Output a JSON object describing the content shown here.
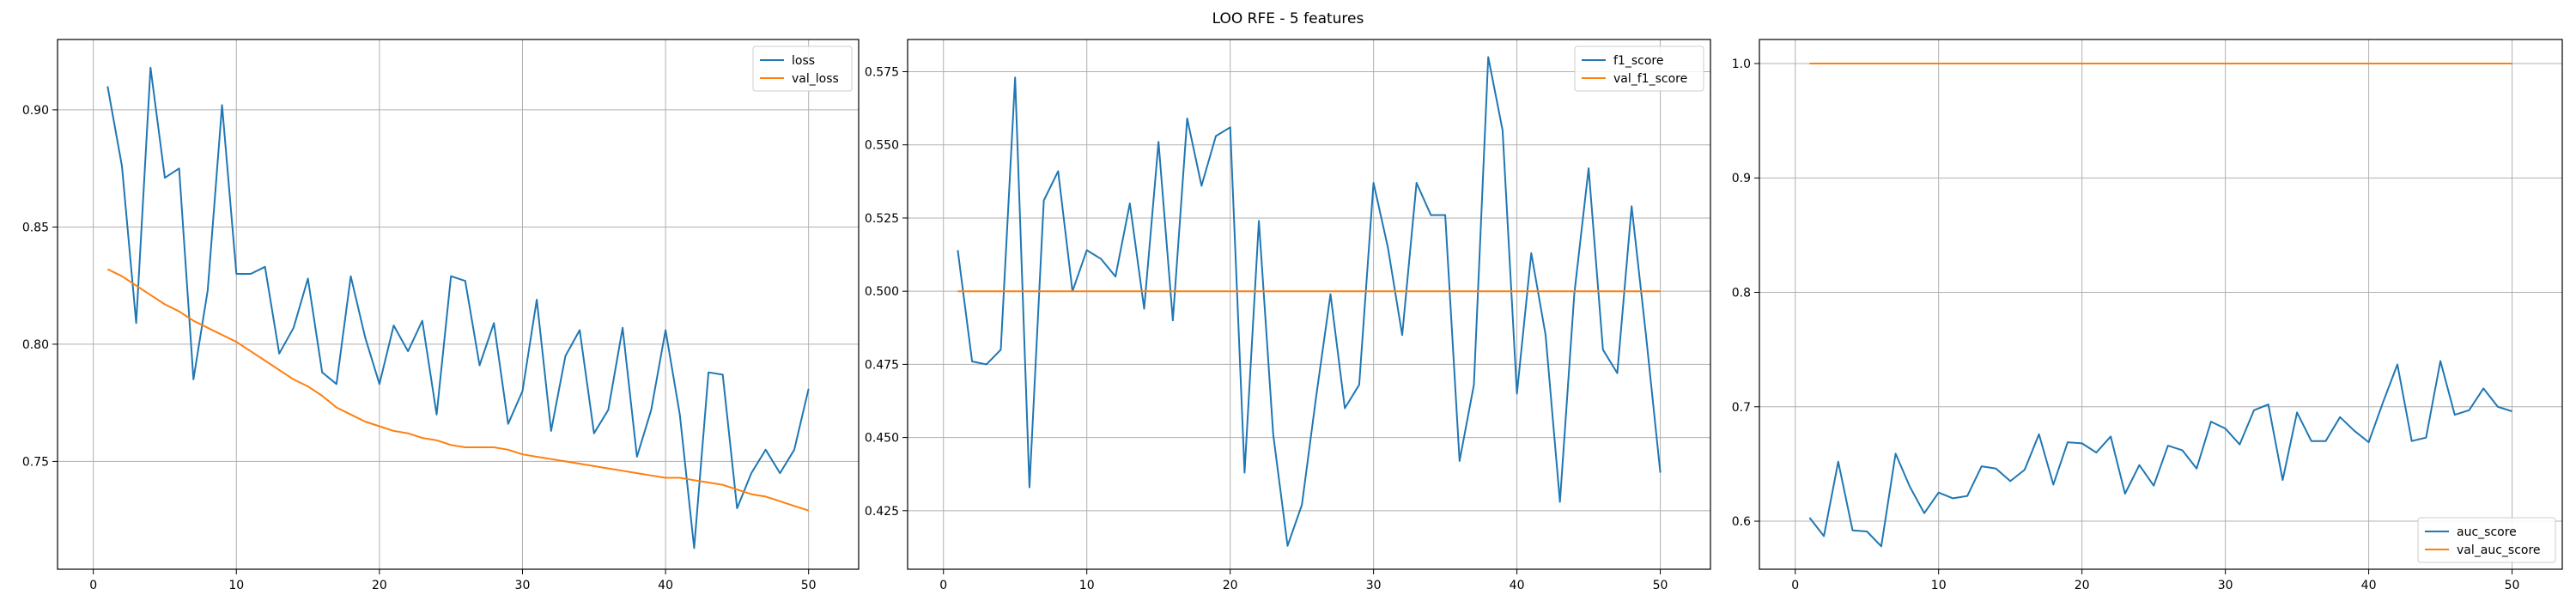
{
  "figure_title": "LOO RFE - 5 features",
  "colors": {
    "blue": "#1f77b4",
    "orange": "#ff7f0e"
  },
  "chart_data": [
    {
      "type": "line",
      "legend_position": "top-right",
      "grid": true,
      "xlim": [
        -2.5,
        53.5
      ],
      "ylim": [
        0.704,
        0.93
      ],
      "xticks": [
        0,
        10,
        20,
        30,
        40,
        50
      ],
      "yticks": [
        0.75,
        0.8,
        0.85,
        0.9
      ],
      "ytick_decimals": 2,
      "x": [
        1,
        2,
        3,
        4,
        5,
        6,
        7,
        8,
        9,
        10,
        11,
        12,
        13,
        14,
        15,
        16,
        17,
        18,
        19,
        20,
        21,
        22,
        23,
        24,
        25,
        26,
        27,
        28,
        29,
        30,
        31,
        32,
        33,
        34,
        35,
        36,
        37,
        38,
        39,
        40,
        41,
        42,
        43,
        44,
        45,
        46,
        47,
        48,
        49,
        50
      ],
      "series": [
        {
          "name": "loss",
          "color": "#1f77b4",
          "values": [
            0.91,
            0.876,
            0.809,
            0.918,
            0.871,
            0.875,
            0.785,
            0.823,
            0.902,
            0.83,
            0.83,
            0.833,
            0.796,
            0.807,
            0.828,
            0.788,
            0.783,
            0.829,
            0.803,
            0.783,
            0.808,
            0.797,
            0.81,
            0.77,
            0.829,
            0.827,
            0.791,
            0.809,
            0.766,
            0.78,
            0.819,
            0.763,
            0.795,
            0.806,
            0.762,
            0.772,
            0.807,
            0.752,
            0.772,
            0.806,
            0.77,
            0.713,
            0.788,
            0.787,
            0.73,
            0.745,
            0.755,
            0.745,
            0.755,
            0.781
          ]
        },
        {
          "name": "val_loss",
          "color": "#ff7f0e",
          "values": [
            0.832,
            0.829,
            0.825,
            0.821,
            0.817,
            0.814,
            0.81,
            0.807,
            0.804,
            0.801,
            0.797,
            0.793,
            0.789,
            0.785,
            0.782,
            0.778,
            0.773,
            0.77,
            0.767,
            0.765,
            0.763,
            0.762,
            0.76,
            0.759,
            0.757,
            0.756,
            0.756,
            0.756,
            0.755,
            0.753,
            0.752,
            0.751,
            0.75,
            0.749,
            0.748,
            0.747,
            0.746,
            0.745,
            0.744,
            0.743,
            0.743,
            0.742,
            0.741,
            0.74,
            0.738,
            0.736,
            0.735,
            0.733,
            0.731,
            0.729
          ]
        }
      ]
    },
    {
      "type": "line",
      "legend_position": "top-right",
      "grid": true,
      "xlim": [
        -2.5,
        53.5
      ],
      "ylim": [
        0.405,
        0.586
      ],
      "xticks": [
        0,
        10,
        20,
        30,
        40,
        50
      ],
      "yticks": [
        0.425,
        0.45,
        0.475,
        0.5,
        0.525,
        0.55,
        0.575
      ],
      "ytick_decimals": 3,
      "x": [
        1,
        2,
        3,
        4,
        5,
        6,
        7,
        8,
        9,
        10,
        11,
        12,
        13,
        14,
        15,
        16,
        17,
        18,
        19,
        20,
        21,
        22,
        23,
        24,
        25,
        26,
        27,
        28,
        29,
        30,
        31,
        32,
        33,
        34,
        35,
        36,
        37,
        38,
        39,
        40,
        41,
        42,
        43,
        44,
        45,
        46,
        47,
        48,
        49,
        50
      ],
      "series": [
        {
          "name": "f1_score",
          "color": "#1f77b4",
          "values": [
            0.514,
            0.476,
            0.475,
            0.48,
            0.573,
            0.433,
            0.531,
            0.541,
            0.5,
            0.514,
            0.511,
            0.505,
            0.53,
            0.494,
            0.551,
            0.49,
            0.559,
            0.536,
            0.553,
            0.556,
            0.438,
            0.524,
            0.451,
            0.413,
            0.427,
            0.464,
            0.499,
            0.46,
            0.468,
            0.537,
            0.515,
            0.485,
            0.537,
            0.526,
            0.526,
            0.442,
            0.468,
            0.58,
            0.555,
            0.465,
            0.513,
            0.485,
            0.428,
            0.499,
            0.542,
            0.48,
            0.472,
            0.529,
            0.485,
            0.438
          ]
        },
        {
          "name": "val_f1_score",
          "color": "#ff7f0e",
          "values": [
            0.5,
            0.5,
            0.5,
            0.5,
            0.5,
            0.5,
            0.5,
            0.5,
            0.5,
            0.5,
            0.5,
            0.5,
            0.5,
            0.5,
            0.5,
            0.5,
            0.5,
            0.5,
            0.5,
            0.5,
            0.5,
            0.5,
            0.5,
            0.5,
            0.5,
            0.5,
            0.5,
            0.5,
            0.5,
            0.5,
            0.5,
            0.5,
            0.5,
            0.5,
            0.5,
            0.5,
            0.5,
            0.5,
            0.5,
            0.5,
            0.5,
            0.5,
            0.5,
            0.5,
            0.5,
            0.5,
            0.5,
            0.5,
            0.5,
            0.5
          ]
        }
      ]
    },
    {
      "type": "line",
      "legend_position": "bottom-right",
      "grid": true,
      "xlim": [
        -2.5,
        53.5
      ],
      "ylim": [
        0.558,
        1.021
      ],
      "xticks": [
        0,
        10,
        20,
        30,
        40,
        50
      ],
      "yticks": [
        0.6,
        0.7,
        0.8,
        0.9,
        1.0
      ],
      "ytick_decimals": 1,
      "x": [
        1,
        2,
        3,
        4,
        5,
        6,
        7,
        8,
        9,
        10,
        11,
        12,
        13,
        14,
        15,
        16,
        17,
        18,
        19,
        20,
        21,
        22,
        23,
        24,
        25,
        26,
        27,
        28,
        29,
        30,
        31,
        32,
        33,
        34,
        35,
        36,
        37,
        38,
        39,
        40,
        41,
        42,
        43,
        44,
        45,
        46,
        47,
        48,
        49,
        50
      ],
      "series": [
        {
          "name": "auc_score",
          "color": "#1f77b4",
          "values": [
            0.603,
            0.587,
            0.652,
            0.592,
            0.591,
            0.578,
            0.659,
            0.63,
            0.607,
            0.625,
            0.62,
            0.622,
            0.648,
            0.646,
            0.635,
            0.645,
            0.676,
            0.632,
            0.669,
            0.668,
            0.66,
            0.674,
            0.624,
            0.649,
            0.631,
            0.666,
            0.662,
            0.646,
            0.687,
            0.681,
            0.667,
            0.697,
            0.702,
            0.636,
            0.695,
            0.67,
            0.67,
            0.691,
            0.679,
            0.669,
            0.704,
            0.737,
            0.67,
            0.673,
            0.74,
            0.693,
            0.697,
            0.716,
            0.7,
            0.696
          ]
        },
        {
          "name": "val_auc_score",
          "color": "#ff7f0e",
          "values": [
            1.0,
            1.0,
            1.0,
            1.0,
            1.0,
            1.0,
            1.0,
            1.0,
            1.0,
            1.0,
            1.0,
            1.0,
            1.0,
            1.0,
            1.0,
            1.0,
            1.0,
            1.0,
            1.0,
            1.0,
            1.0,
            1.0,
            1.0,
            1.0,
            1.0,
            1.0,
            1.0,
            1.0,
            1.0,
            1.0,
            1.0,
            1.0,
            1.0,
            1.0,
            1.0,
            1.0,
            1.0,
            1.0,
            1.0,
            1.0,
            1.0,
            1.0,
            1.0,
            1.0,
            1.0,
            1.0,
            1.0,
            1.0,
            1.0,
            1.0
          ]
        }
      ]
    }
  ]
}
